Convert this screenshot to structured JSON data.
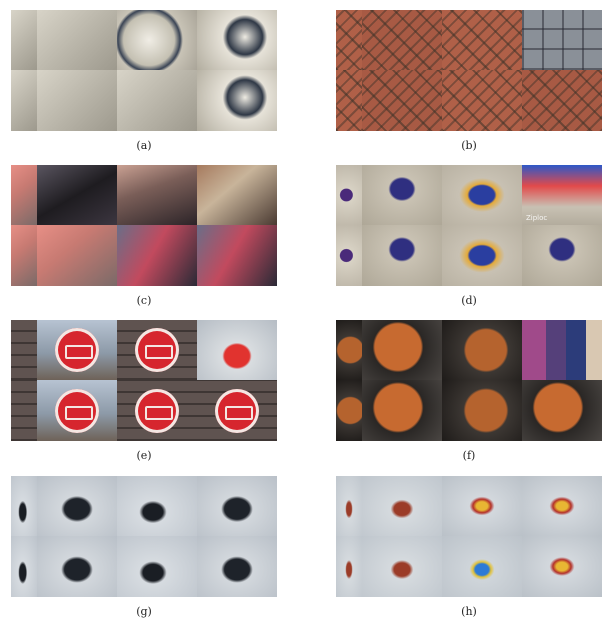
{
  "figure": {
    "panels": [
      {
        "id": "a",
        "caption": "(a)",
        "tiles": [
          {
            "theme": "plates p1",
            "label": ""
          },
          {
            "theme": "plates p1",
            "label": ""
          },
          {
            "theme": "plates p2",
            "label": ""
          },
          {
            "theme": "plates p3",
            "label": ""
          },
          {
            "theme": "plates p1",
            "label": ""
          },
          {
            "theme": "plates p1",
            "label": ""
          },
          {
            "theme": "plates p1",
            "label": ""
          },
          {
            "theme": "plates p3",
            "label": ""
          }
        ]
      },
      {
        "id": "b",
        "caption": "(b)",
        "tiles": [
          {
            "theme": "bricks",
            "label": ""
          },
          {
            "theme": "bricks b2",
            "label": ""
          },
          {
            "theme": "bricks",
            "label": ""
          },
          {
            "theme": "tiles-grey",
            "label": ""
          },
          {
            "theme": "bricks",
            "label": ""
          },
          {
            "theme": "bricks b2",
            "label": ""
          },
          {
            "theme": "bricks",
            "label": ""
          },
          {
            "theme": "bricks b2",
            "label": ""
          }
        ]
      },
      {
        "id": "c",
        "caption": "(c)",
        "tiles": [
          {
            "theme": "scene s5",
            "label": ""
          },
          {
            "theme": "scene s2",
            "label": ""
          },
          {
            "theme": "scene",
            "label": ""
          },
          {
            "theme": "scene s3",
            "label": ""
          },
          {
            "theme": "scene s5",
            "label": ""
          },
          {
            "theme": "scene s5",
            "label": ""
          },
          {
            "theme": "scene s4",
            "label": ""
          },
          {
            "theme": "scene s4",
            "label": ""
          }
        ]
      },
      {
        "id": "d",
        "caption": "(d)",
        "tiles": [
          {
            "theme": "candy",
            "label": ""
          },
          {
            "theme": "candy c4",
            "label": ""
          },
          {
            "theme": "candy c2",
            "label": ""
          },
          {
            "theme": "candy c3",
            "label": "Ziploc"
          },
          {
            "theme": "candy",
            "label": ""
          },
          {
            "theme": "candy c4",
            "label": ""
          },
          {
            "theme": "candy c2",
            "label": ""
          },
          {
            "theme": "candy c4",
            "label": ""
          }
        ]
      },
      {
        "id": "e",
        "caption": "(e)",
        "tiles": [
          {
            "theme": "sign",
            "label": "",
            "disc": false
          },
          {
            "theme": "sign s2",
            "label": "",
            "disc": true
          },
          {
            "theme": "sign",
            "label": "",
            "disc": true
          },
          {
            "theme": "bottle",
            "label": "",
            "disc": false
          },
          {
            "theme": "sign",
            "label": "",
            "disc": false
          },
          {
            "theme": "sign s2",
            "label": "",
            "disc": true
          },
          {
            "theme": "sign",
            "label": "",
            "disc": true
          },
          {
            "theme": "sign",
            "label": "",
            "disc": true
          }
        ]
      },
      {
        "id": "f",
        "caption": "(f)",
        "tiles": [
          {
            "theme": "ball",
            "label": ""
          },
          {
            "theme": "ball b2",
            "label": ""
          },
          {
            "theme": "ball",
            "label": ""
          },
          {
            "theme": "poster",
            "label": ""
          },
          {
            "theme": "ball",
            "label": ""
          },
          {
            "theme": "ball b2",
            "label": ""
          },
          {
            "theme": "ball",
            "label": ""
          },
          {
            "theme": "ball b2",
            "label": ""
          }
        ]
      },
      {
        "id": "g",
        "caption": "(g)",
        "tiles": [
          {
            "theme": "bag g2",
            "label": ""
          },
          {
            "theme": "bag",
            "label": ""
          },
          {
            "theme": "bag g2",
            "label": ""
          },
          {
            "theme": "bag",
            "label": ""
          },
          {
            "theme": "bag g2",
            "label": ""
          },
          {
            "theme": "bag",
            "label": ""
          },
          {
            "theme": "bag g2",
            "label": ""
          },
          {
            "theme": "bag",
            "label": ""
          }
        ]
      },
      {
        "id": "h",
        "caption": "(h)",
        "tiles": [
          {
            "theme": "strap",
            "label": ""
          },
          {
            "theme": "strap",
            "label": ""
          },
          {
            "theme": "strap h2",
            "label": ""
          },
          {
            "theme": "strap h2",
            "label": ""
          },
          {
            "theme": "strap",
            "label": ""
          },
          {
            "theme": "strap",
            "label": ""
          },
          {
            "theme": "cup",
            "label": ""
          },
          {
            "theme": "strap h2",
            "label": ""
          }
        ]
      }
    ]
  }
}
